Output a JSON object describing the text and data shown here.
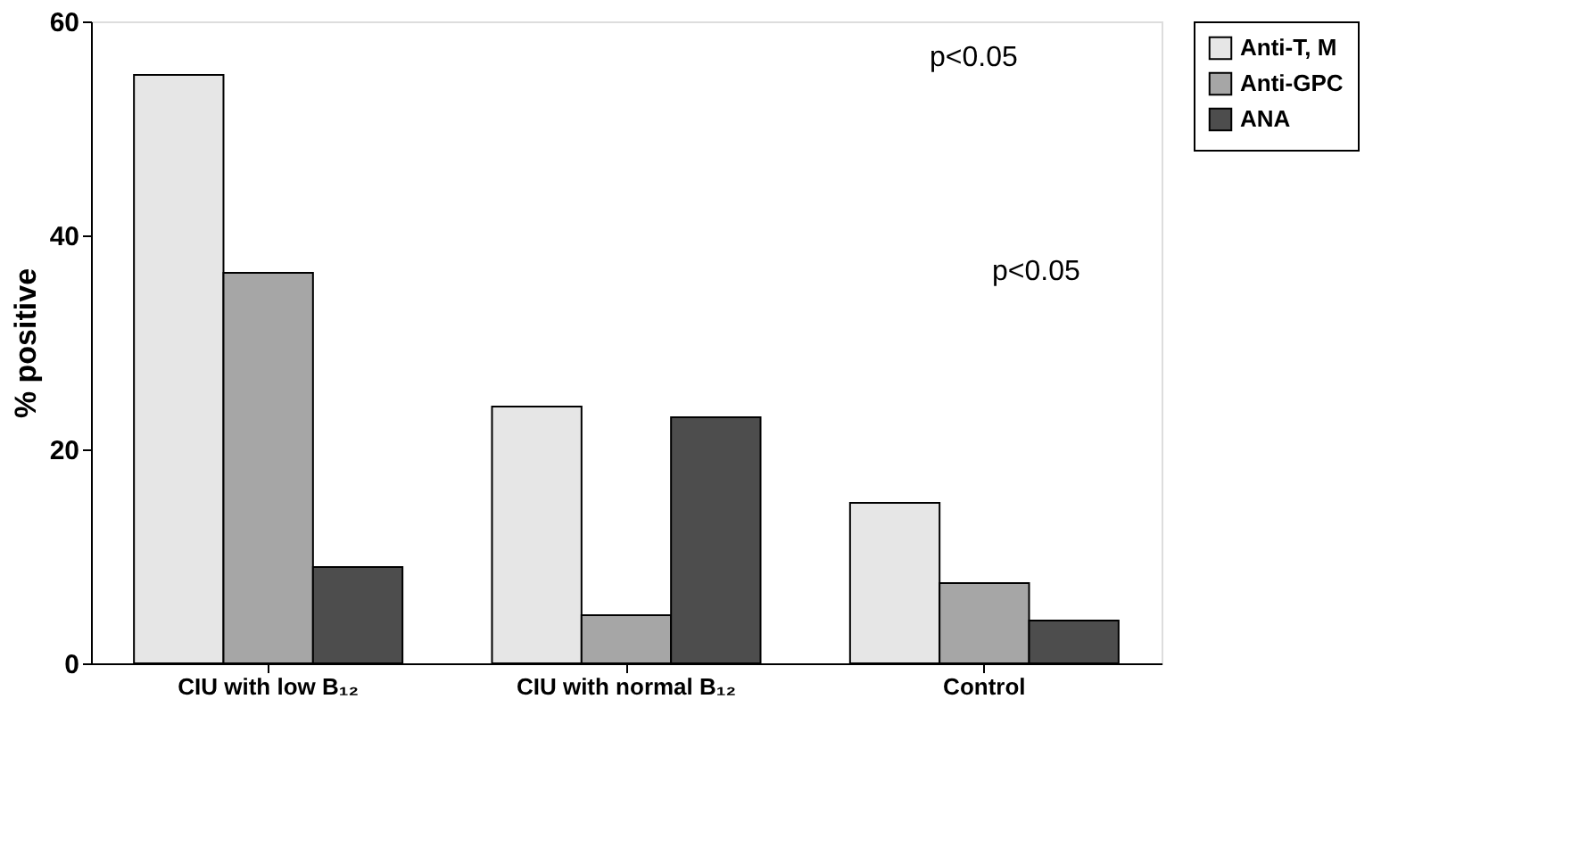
{
  "chart_data": {
    "type": "bar",
    "ylabel": "% positive",
    "categories": [
      "CIU with low B₁₂",
      "CIU with normal B₁₂",
      "Control"
    ],
    "series": [
      {
        "name": "Anti-T, M",
        "color": "#e6e6e6",
        "values": [
          55,
          24,
          15
        ]
      },
      {
        "name": "Anti-GPC",
        "color": "#a6a6a6",
        "values": [
          36.5,
          4.5,
          7.5
        ]
      },
      {
        "name": "ANA",
        "color": "#4d4d4d",
        "values": [
          9,
          23,
          4
        ]
      }
    ],
    "ylim": [
      0,
      60
    ],
    "yticks": [
      0,
      20,
      40,
      60
    ],
    "grid": false,
    "legend": "right",
    "annotations": [
      "p<0.05",
      "p<0.05"
    ]
  }
}
